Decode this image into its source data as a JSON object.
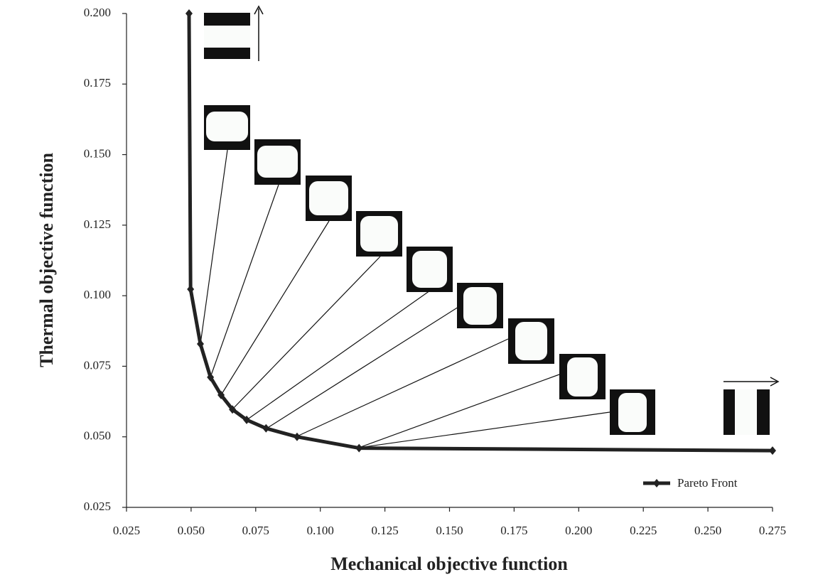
{
  "chart_data": {
    "type": "line",
    "xlabel": "Mechanical objective function",
    "ylabel": "Thermal objective function",
    "xlim": [
      0.025,
      0.275
    ],
    "ylim": [
      0.025,
      0.2
    ],
    "xticks": [
      0.025,
      {
        "value": 0.05,
        "label": "0.050"
      },
      0.075,
      {
        "value": 0.1,
        "label": "0.100"
      },
      0.125,
      {
        "value": 0.15,
        "label": "0.150"
      },
      0.175,
      {
        "value": 0.2,
        "label": "0.200"
      },
      0.225,
      {
        "value": 0.25,
        "label": "0.250"
      },
      0.275
    ],
    "yticks": [
      0.025,
      {
        "value": 0.05,
        "label": "0.050"
      },
      0.075,
      {
        "value": 0.1,
        "label": "0.100"
      },
      0.125,
      {
        "value": 0.15,
        "label": "0.150"
      },
      0.175,
      {
        "value": 0.2,
        "label": "0.200"
      }
    ],
    "grid": false,
    "legend": "lower right",
    "series": [
      {
        "name": "Pareto Front",
        "color": "#222222",
        "x": [
          0.0492,
          0.0498,
          0.0536,
          0.0575,
          0.0616,
          0.066,
          0.0715,
          0.079,
          0.091,
          0.115,
          0.275
        ],
        "values": [
          0.2,
          0.1023,
          0.0829,
          0.0711,
          0.0648,
          0.0597,
          0.056,
          0.053,
          0.05,
          0.046,
          0.0451
        ]
      }
    ]
  }
}
